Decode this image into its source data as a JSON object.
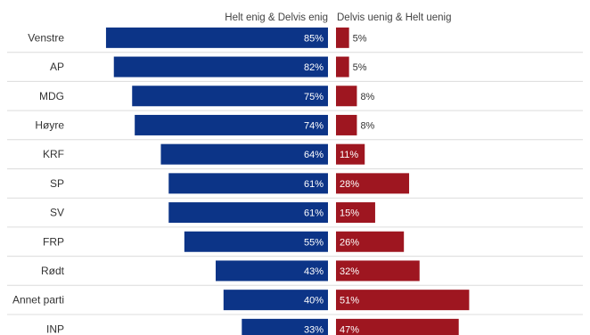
{
  "chart_data": {
    "type": "bar",
    "orientation": "horizontal-diverging",
    "legend": [
      "Helt enig & Delvis enig",
      "Delvis uenig & Helt uenig"
    ],
    "categories": [
      "Venstre",
      "AP",
      "MDG",
      "Høyre",
      "KRF",
      "SP",
      "SV",
      "FRP",
      "Rødt",
      "Annet parti",
      "INP"
    ],
    "series": [
      {
        "name": "Helt enig & Delvis enig",
        "values": [
          85,
          82,
          75,
          74,
          64,
          61,
          61,
          55,
          43,
          40,
          33
        ],
        "labels": [
          "85%",
          "82%",
          "75%",
          "74%",
          "64%",
          "61%",
          "61%",
          "55%",
          "43%",
          "40%",
          "33%"
        ],
        "color": "#0c3487"
      },
      {
        "name": "Delvis uenig & Helt uenig",
        "values": [
          5,
          5,
          8,
          8,
          11,
          28,
          15,
          26,
          32,
          51,
          47
        ],
        "labels": [
          "5%",
          "5%",
          "8%",
          "8%",
          "11%",
          "28%",
          "15%",
          "26%",
          "32%",
          "51%",
          "47%"
        ],
        "color": "#9e1620"
      }
    ],
    "grid": false
  }
}
